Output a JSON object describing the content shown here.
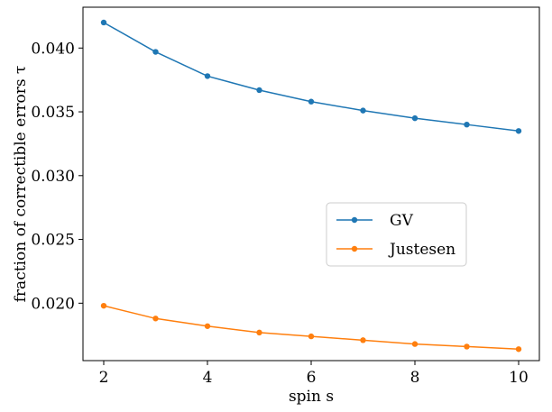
{
  "chart_data": {
    "type": "line",
    "xlabel": "spin s",
    "ylabel": "fraction of correctible errors τ",
    "x": [
      2,
      3,
      4,
      5,
      6,
      7,
      8,
      9,
      10
    ],
    "xlim": [
      1.6,
      10.4
    ],
    "ylim": [
      0.0155,
      0.0432
    ],
    "xticks": [
      2,
      4,
      6,
      8,
      10
    ],
    "yticks": [
      0.02,
      0.025,
      0.03,
      0.035,
      0.04
    ],
    "ytick_labels": [
      "0.020",
      "0.025",
      "0.030",
      "0.035",
      "0.040"
    ],
    "grid": false,
    "legend_position": "center-right",
    "series": [
      {
        "name": "GV",
        "color": "#1f77b4",
        "values": [
          0.042,
          0.0397,
          0.0378,
          0.0367,
          0.0358,
          0.0351,
          0.0345,
          0.034,
          0.0335
        ]
      },
      {
        "name": "Justesen",
        "color": "#ff7f0e",
        "values": [
          0.0198,
          0.0188,
          0.0182,
          0.0177,
          0.0174,
          0.0171,
          0.0168,
          0.0166,
          0.0164
        ]
      }
    ]
  }
}
